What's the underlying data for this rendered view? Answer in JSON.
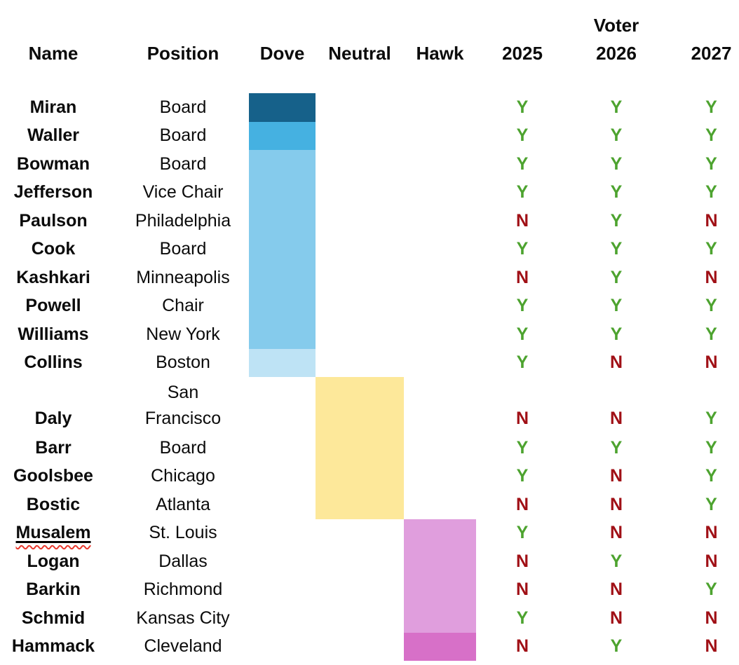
{
  "header": {
    "voter_label": "Voter",
    "columns": {
      "name": "Name",
      "position": "Position",
      "dove": "Dove",
      "neutral": "Neutral",
      "hawk": "Hawk",
      "y2025": "2025",
      "y2026": "2026",
      "y2027": "2027"
    }
  },
  "colors": {
    "yes_green": "#4DA32F",
    "no_red": "#A01016",
    "dove_strong": "#16618A",
    "dove_medium": "#45B1E1",
    "dove_light": "#85CBEC",
    "dove_lean": "#BEE3F5",
    "neutral_yellow": "#FDE89A",
    "hawk_light": "#E09EDD",
    "hawk_strong": "#D770C8",
    "spellcheck_red": "#E8392E",
    "text_black": "#000000"
  },
  "chart_data": {
    "type": "table",
    "title": "",
    "columns": [
      "Name",
      "Position",
      "Dove",
      "Neutral",
      "Hawk",
      "2025",
      "2026",
      "2027"
    ],
    "voter_group_label": "Voter",
    "rows": [
      {
        "name": "Miran",
        "position": "Board",
        "stance": "dove",
        "stance_color": "#16618A",
        "v2025": "Y",
        "v2026": "Y",
        "v2027": "Y"
      },
      {
        "name": "Waller",
        "position": "Board",
        "stance": "dove",
        "stance_color": "#45B1E1",
        "v2025": "Y",
        "v2026": "Y",
        "v2027": "Y"
      },
      {
        "name": "Bowman",
        "position": "Board",
        "stance": "dove",
        "stance_color": "#85CBEC",
        "v2025": "Y",
        "v2026": "Y",
        "v2027": "Y"
      },
      {
        "name": "Jefferson",
        "position": "Vice Chair",
        "stance": "dove",
        "stance_color": "#85CBEC",
        "v2025": "Y",
        "v2026": "Y",
        "v2027": "Y"
      },
      {
        "name": "Paulson",
        "position": "Philadelphia",
        "stance": "dove",
        "stance_color": "#85CBEC",
        "v2025": "N",
        "v2026": "Y",
        "v2027": "N"
      },
      {
        "name": "Cook",
        "position": "Board",
        "stance": "dove",
        "stance_color": "#85CBEC",
        "v2025": "Y",
        "v2026": "Y",
        "v2027": "Y"
      },
      {
        "name": "Kashkari",
        "position": "Minneapolis",
        "stance": "dove",
        "stance_color": "#85CBEC",
        "v2025": "N",
        "v2026": "Y",
        "v2027": "N"
      },
      {
        "name": "Powell",
        "position": "Chair",
        "stance": "dove",
        "stance_color": "#85CBEC",
        "v2025": "Y",
        "v2026": "Y",
        "v2027": "Y"
      },
      {
        "name": "Williams",
        "position": "New York",
        "stance": "dove",
        "stance_color": "#85CBEC",
        "v2025": "Y",
        "v2026": "Y",
        "v2027": "Y"
      },
      {
        "name": "Collins",
        "position": "Boston",
        "stance": "dove",
        "stance_color": "#BEE3F5",
        "v2025": "Y",
        "v2026": "N",
        "v2027": "N"
      },
      {
        "name": "Daly",
        "position": "San Francisco",
        "stance": "neutral",
        "stance_color": "#FDE89A",
        "tall": true,
        "v2025": "N",
        "v2026": "N",
        "v2027": "Y"
      },
      {
        "name": "Barr",
        "position": "Board",
        "stance": "neutral",
        "stance_color": "#FDE89A",
        "v2025": "Y",
        "v2026": "Y",
        "v2027": "Y"
      },
      {
        "name": "Goolsbee",
        "position": "Chicago",
        "stance": "neutral",
        "stance_color": "#FDE89A",
        "v2025": "Y",
        "v2026": "N",
        "v2027": "Y"
      },
      {
        "name": "Bostic",
        "position": "Atlanta",
        "stance": "neutral",
        "stance_color": "#FDE89A",
        "v2025": "N",
        "v2026": "N",
        "v2027": "Y"
      },
      {
        "name": "Musalem",
        "position": "St. Louis",
        "stance": "hawk",
        "stance_color": "#E09EDD",
        "underline": true,
        "v2025": "Y",
        "v2026": "N",
        "v2027": "N"
      },
      {
        "name": "Logan",
        "position": "Dallas",
        "stance": "hawk",
        "stance_color": "#E09EDD",
        "v2025": "N",
        "v2026": "Y",
        "v2027": "N"
      },
      {
        "name": "Barkin",
        "position": "Richmond",
        "stance": "hawk",
        "stance_color": "#E09EDD",
        "v2025": "N",
        "v2026": "N",
        "v2027": "Y"
      },
      {
        "name": "Schmid",
        "position": "Kansas City",
        "stance": "hawk",
        "stance_color": "#E09EDD",
        "v2025": "Y",
        "v2026": "N",
        "v2027": "N"
      },
      {
        "name": "Hammack",
        "position": "Cleveland",
        "stance": "hawk",
        "stance_color": "#D770C8",
        "v2025": "N",
        "v2026": "Y",
        "v2027": "N"
      }
    ]
  }
}
